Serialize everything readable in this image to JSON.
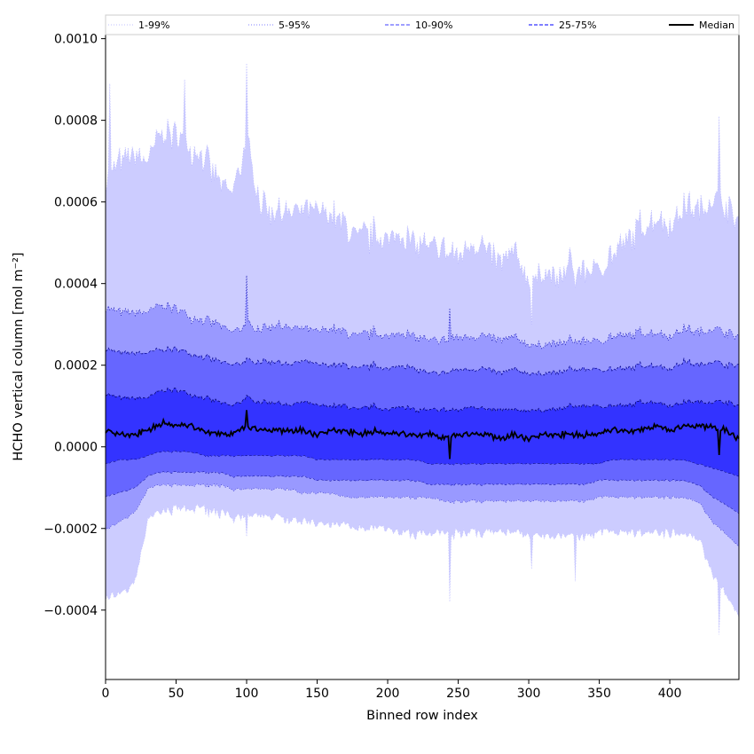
{
  "chart_data": {
    "type": "area",
    "title": "",
    "xlabel": "Binned row index",
    "ylabel": "HCHO vertical column [mol m⁻²]",
    "xlim": [
      0,
      449
    ],
    "ylim": [
      -0.00057,
      0.00101
    ],
    "x_ticks": [
      0,
      50,
      100,
      150,
      200,
      250,
      300,
      350,
      400
    ],
    "x_tick_labels": [
      "0",
      "50",
      "100",
      "150",
      "200",
      "250",
      "300",
      "350",
      "400"
    ],
    "y_ticks": [
      -0.0004,
      -0.0002,
      0.0,
      0.0002,
      0.0004,
      0.0006,
      0.0008,
      0.001
    ],
    "y_tick_labels": [
      "−0.0004",
      "−0.0002",
      "0.0000",
      "0.0002",
      "0.0004",
      "0.0006",
      "0.0008",
      "0.0010"
    ],
    "grid": false,
    "legend_position": "top, spanning full width",
    "legend": [
      {
        "label": "1-99%",
        "color": "#ccccff",
        "style": "dotted"
      },
      {
        "label": "5-95%",
        "color": "#9999ff",
        "style": "dotted"
      },
      {
        "label": "10-90%",
        "color": "#6666ff",
        "style": "dashed"
      },
      {
        "label": "25-75%",
        "color": "#3333ff",
        "style": "dashed"
      },
      {
        "label": "Median",
        "color": "#000000",
        "style": "solid"
      }
    ],
    "x": [
      0,
      10,
      20,
      30,
      40,
      50,
      60,
      70,
      80,
      90,
      100,
      110,
      120,
      130,
      140,
      150,
      160,
      170,
      180,
      190,
      200,
      210,
      220,
      230,
      240,
      250,
      260,
      270,
      280,
      290,
      300,
      310,
      320,
      330,
      340,
      350,
      360,
      370,
      380,
      390,
      400,
      410,
      420,
      430,
      440,
      449
    ],
    "bands": [
      {
        "name": "1-99%",
        "lower": [
          -0.00036,
          -0.00035,
          -0.00033,
          -0.00017,
          -0.00015,
          -0.00014,
          -0.00014,
          -0.00014,
          -0.00015,
          -0.00016,
          -0.00016,
          -0.00016,
          -0.00016,
          -0.00017,
          -0.00017,
          -0.00018,
          -0.00018,
          -0.00018,
          -0.00019,
          -0.00019,
          -0.00019,
          -0.0002,
          -0.0002,
          -0.0002,
          -0.0002,
          -0.0002,
          -0.0002,
          -0.0002,
          -0.0002,
          -0.0002,
          -0.00021,
          -0.00021,
          -0.00021,
          -0.00021,
          -0.00021,
          -0.0002,
          -0.0002,
          -0.0002,
          -0.0002,
          -0.0002,
          -0.0002,
          -0.0002,
          -0.00021,
          -0.0003,
          -0.00035,
          -0.0004
        ],
        "upper": [
          0.00065,
          0.0007,
          0.00072,
          0.0007,
          0.00078,
          0.00077,
          0.00074,
          0.00071,
          0.00065,
          0.00062,
          0.00075,
          0.0006,
          0.00058,
          0.00057,
          0.00058,
          0.00057,
          0.00057,
          0.00054,
          0.00051,
          0.00052,
          0.00051,
          0.00052,
          0.0005,
          0.00049,
          0.00048,
          0.00047,
          0.0005,
          0.00048,
          0.00045,
          0.00048,
          0.00041,
          0.00043,
          0.0004,
          0.00045,
          0.00043,
          0.00044,
          0.00047,
          0.0005,
          0.00054,
          0.00056,
          0.00054,
          0.00059,
          0.00058,
          0.00061,
          0.00059,
          0.00055
        ]
      },
      {
        "name": "5-95%",
        "lower": [
          -0.0002,
          -0.00018,
          -0.00016,
          -0.0001,
          -9e-05,
          -9e-05,
          -9e-05,
          -9e-05,
          -9e-05,
          -0.0001,
          -0.0001,
          -0.0001,
          -0.0001,
          -0.0001,
          -0.00011,
          -0.00011,
          -0.00011,
          -0.00012,
          -0.00012,
          -0.00012,
          -0.00012,
          -0.00012,
          -0.00012,
          -0.00012,
          -0.00013,
          -0.00013,
          -0.00013,
          -0.00013,
          -0.00013,
          -0.00013,
          -0.00013,
          -0.00013,
          -0.00013,
          -0.00013,
          -0.00013,
          -0.00012,
          -0.00012,
          -0.00012,
          -0.00012,
          -0.00012,
          -0.00012,
          -0.00012,
          -0.00013,
          -0.00018,
          -0.00021,
          -0.00024
        ],
        "upper": [
          0.00034,
          0.00033,
          0.00033,
          0.00033,
          0.00035,
          0.00034,
          0.00032,
          0.00031,
          0.0003,
          0.00028,
          0.0003,
          0.00029,
          0.0003,
          0.00029,
          0.00029,
          0.00028,
          0.00029,
          0.00028,
          0.00027,
          0.00028,
          0.00027,
          0.00028,
          0.00027,
          0.00026,
          0.00026,
          0.00027,
          0.00027,
          0.00027,
          0.00026,
          0.00027,
          0.00025,
          0.00025,
          0.00025,
          0.00026,
          0.00026,
          0.00026,
          0.00027,
          0.00027,
          0.00028,
          0.00028,
          0.00027,
          0.00029,
          0.00028,
          0.00029,
          0.00028,
          0.00027
        ]
      },
      {
        "name": "10-90%",
        "lower": [
          -0.00012,
          -0.00011,
          -0.0001,
          -7e-05,
          -6e-05,
          -6e-05,
          -6e-05,
          -6e-05,
          -6e-05,
          -7e-05,
          -7e-05,
          -7e-05,
          -7e-05,
          -7e-05,
          -7e-05,
          -8e-05,
          -8e-05,
          -8e-05,
          -8e-05,
          -8e-05,
          -8e-05,
          -8e-05,
          -8e-05,
          -9e-05,
          -9e-05,
          -9e-05,
          -9e-05,
          -9e-05,
          -9e-05,
          -9e-05,
          -9e-05,
          -9e-05,
          -9e-05,
          -9e-05,
          -9e-05,
          -8e-05,
          -8e-05,
          -8e-05,
          -8e-05,
          -8e-05,
          -8e-05,
          -8e-05,
          -9e-05,
          -0.00012,
          -0.00014,
          -0.00016
        ],
        "upper": [
          0.00024,
          0.00023,
          0.00023,
          0.00023,
          0.00024,
          0.00024,
          0.00023,
          0.00022,
          0.00021,
          0.0002,
          0.00021,
          0.00021,
          0.00021,
          0.0002,
          0.00021,
          0.0002,
          0.0002,
          0.0002,
          0.00019,
          0.0002,
          0.00019,
          0.0002,
          0.00019,
          0.00018,
          0.00018,
          0.00019,
          0.00019,
          0.00019,
          0.00018,
          0.00019,
          0.00018,
          0.00018,
          0.00018,
          0.00019,
          0.00019,
          0.00019,
          0.00019,
          0.00019,
          0.0002,
          0.0002,
          0.00019,
          0.00021,
          0.0002,
          0.00021,
          0.0002,
          0.0002
        ]
      },
      {
        "name": "25-75%",
        "lower": [
          -4e-05,
          -3e-05,
          -3e-05,
          -2e-05,
          -1e-05,
          -1e-05,
          -1e-05,
          -2e-05,
          -2e-05,
          -2e-05,
          -2e-05,
          -2e-05,
          -2e-05,
          -2e-05,
          -2e-05,
          -3e-05,
          -3e-05,
          -3e-05,
          -3e-05,
          -3e-05,
          -3e-05,
          -3e-05,
          -3e-05,
          -4e-05,
          -4e-05,
          -4e-05,
          -4e-05,
          -4e-05,
          -4e-05,
          -4e-05,
          -4e-05,
          -4e-05,
          -4e-05,
          -4e-05,
          -4e-05,
          -4e-05,
          -3e-05,
          -3e-05,
          -3e-05,
          -3e-05,
          -3e-05,
          -3e-05,
          -4e-05,
          -5e-05,
          -6e-05,
          -7e-05
        ],
        "upper": [
          0.00013,
          0.00012,
          0.00012,
          0.00012,
          0.00014,
          0.00014,
          0.00013,
          0.00012,
          0.00011,
          0.0001,
          0.00012,
          0.00011,
          0.00011,
          0.0001,
          0.00011,
          0.0001,
          0.0001,
          0.0001,
          9e-05,
          0.0001,
          9e-05,
          0.0001,
          9e-05,
          9e-05,
          9e-05,
          9e-05,
          0.0001,
          9e-05,
          9e-05,
          9e-05,
          9e-05,
          9e-05,
          9e-05,
          0.0001,
          0.0001,
          0.0001,
          0.0001,
          0.0001,
          0.00011,
          0.00011,
          0.0001,
          0.00011,
          0.00011,
          0.00011,
          0.00011,
          0.0001
        ]
      }
    ],
    "series": [
      {
        "name": "Median",
        "values": [
          4e-05,
          3e-05,
          3e-05,
          4e-05,
          6e-05,
          5e-05,
          5e-05,
          4e-05,
          3e-05,
          3e-05,
          5e-05,
          4e-05,
          4e-05,
          4e-05,
          4e-05,
          3e-05,
          4e-05,
          4e-05,
          3e-05,
          4e-05,
          3e-05,
          3e-05,
          3e-05,
          3e-05,
          2e-05,
          3e-05,
          3e-05,
          3e-05,
          2e-05,
          3e-05,
          2e-05,
          3e-05,
          3e-05,
          3e-05,
          3e-05,
          3e-05,
          4e-05,
          4e-05,
          4e-05,
          5e-05,
          4e-05,
          5e-05,
          5e-05,
          5e-05,
          4e-05,
          2e-05
        ]
      }
    ],
    "spikes": [
      {
        "x": 100,
        "upper_1_99": 0.00094,
        "upper_5_95": 0.00042,
        "lower_1_99": -0.00022
      },
      {
        "x": 56,
        "upper_1_99": 0.0009
      },
      {
        "x": 244,
        "lower_1_99": -0.00038,
        "upper_5_95": 0.00034
      },
      {
        "x": 302,
        "lower_1_99": -0.0003,
        "upper_1_99": 0.0003
      },
      {
        "x": 333,
        "lower_1_99": -0.00033,
        "upper_1_99": 0.00039
      },
      {
        "x": 435,
        "upper_1_99": 0.00081,
        "lower_1_99": -0.00046
      },
      {
        "x": 3,
        "upper_1_99": 0.00089
      }
    ]
  }
}
